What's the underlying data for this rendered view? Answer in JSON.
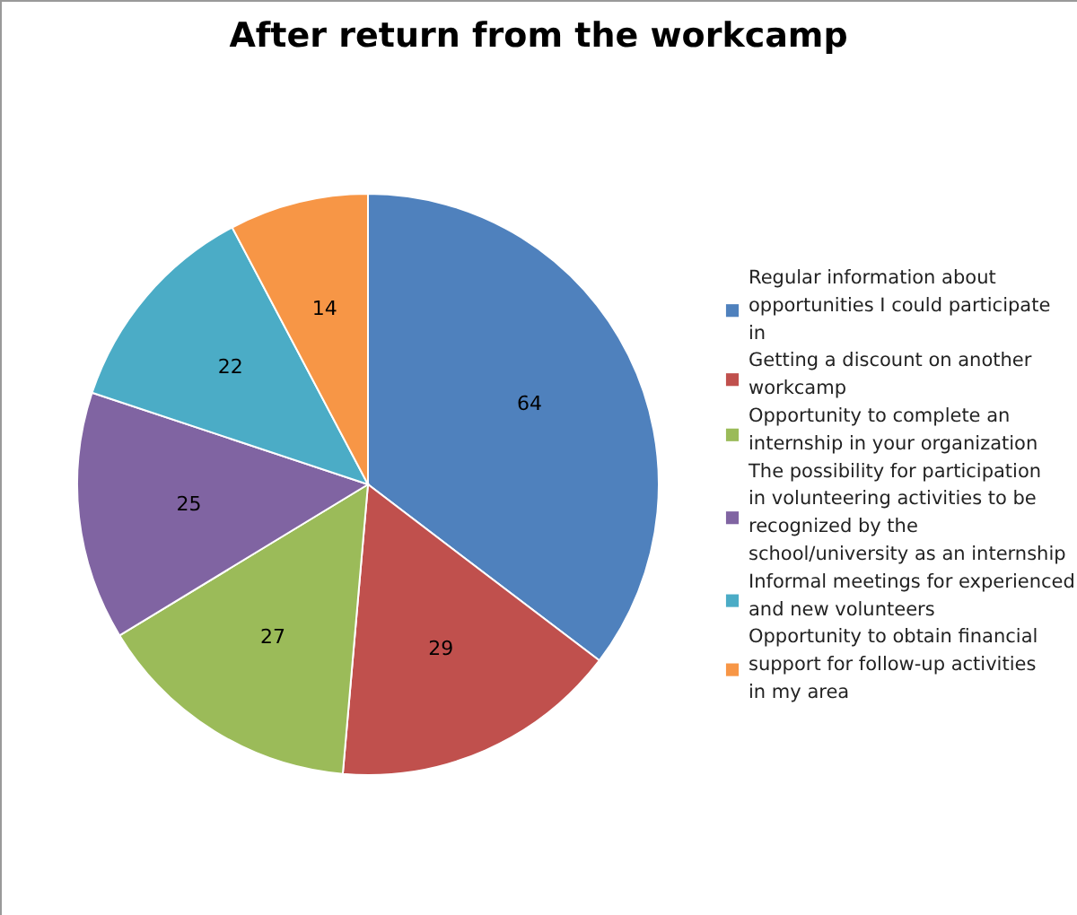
{
  "chart_data": {
    "type": "pie",
    "title": "After return from the workcamp",
    "categories": [
      "Regular information about opportunities I could participate in",
      "Getting a discount on another workcamp",
      "Opportunity to complete an internship in your organization",
      "The possibility for participation in volunteering activities to be recognized by the school/university as an internship",
      "Informal meetings for experienced and new volunteers",
      "Opportunity to obtain financial support for follow-up activities in my area"
    ],
    "values": [
      64,
      29,
      27,
      25,
      22,
      14
    ],
    "colors": [
      "#4f81bd",
      "#c0504d",
      "#9bbb59",
      "#8064a2",
      "#4bacc6",
      "#f79646"
    ],
    "data_labels": true,
    "legend": "right"
  }
}
